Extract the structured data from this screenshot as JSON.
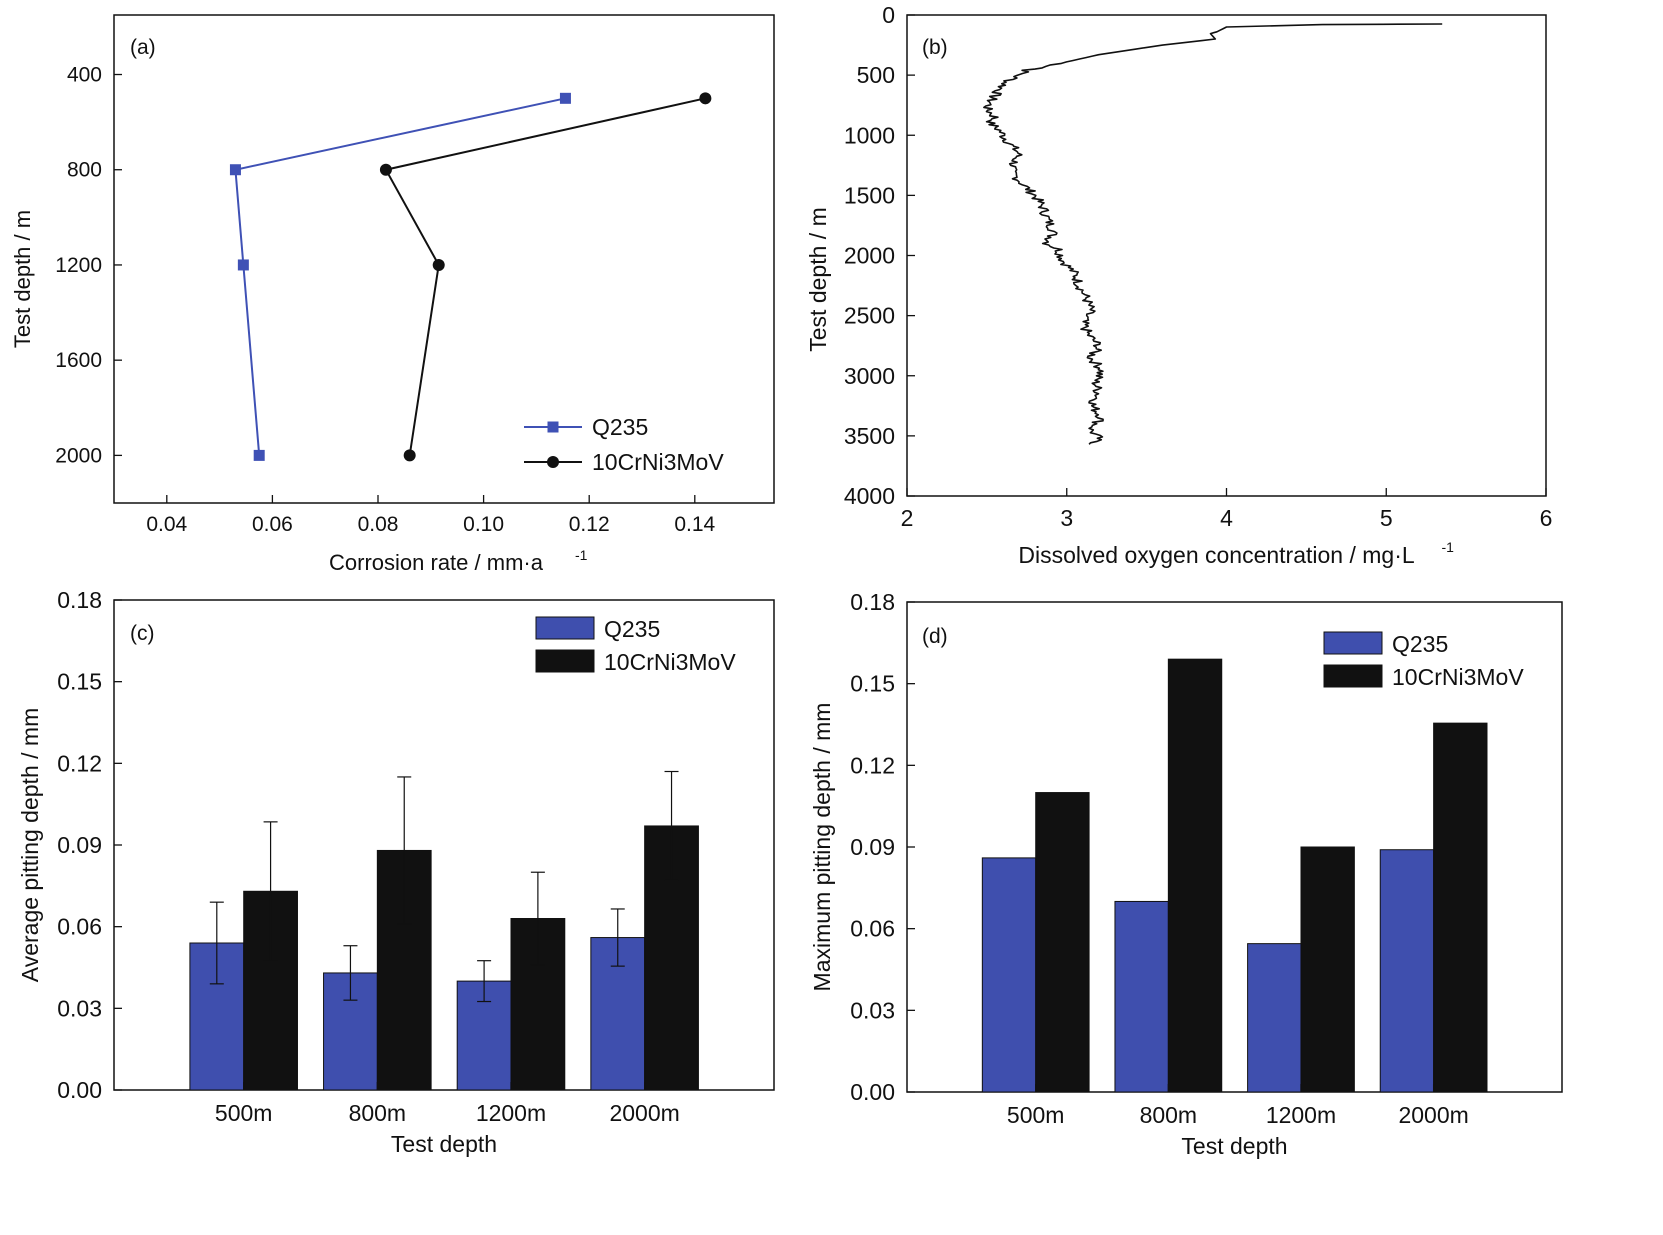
{
  "chart_data": [
    {
      "panel": "(a)",
      "type": "line",
      "xlabel": "Corrosion rate / mm·a",
      "xlabel_sup": "-1",
      "ylabel": "Test depth / m",
      "xlim": [
        0.03,
        0.155
      ],
      "ylim": [
        150,
        2200
      ],
      "y_inverted": true,
      "xticks": [
        0.04,
        0.06,
        0.08,
        0.1,
        0.12,
        0.14
      ],
      "xtick_labels": [
        "0.04",
        "0.06",
        "0.08",
        "0.10",
        "0.12",
        "0.14"
      ],
      "yticks": [
        400,
        800,
        1200,
        1600,
        2000
      ],
      "ytick_labels": [
        "400",
        "800",
        "1200",
        "1600",
        "2000"
      ],
      "legend": "bottom-right",
      "series": [
        {
          "name": "Q235",
          "color": "#3f51b5",
          "marker": "square",
          "points": [
            [
              0.1155,
              500
            ],
            [
              0.053,
              800
            ],
            [
              0.0545,
              1200
            ],
            [
              0.0575,
              2000
            ]
          ]
        },
        {
          "name": "10CrNi3MoV",
          "color": "#111111",
          "marker": "circle",
          "points": [
            [
              0.142,
              500
            ],
            [
              0.0815,
              800
            ],
            [
              0.0915,
              1200
            ],
            [
              0.086,
              2000
            ]
          ]
        }
      ]
    },
    {
      "panel": "(b)",
      "type": "line",
      "xlabel": "Dissolved oxygen concentration / mg·L",
      "xlabel_sup": "-1",
      "ylabel": "Test depth / m",
      "xlim": [
        2,
        6
      ],
      "ylim": [
        0,
        4000
      ],
      "y_inverted": true,
      "xticks": [
        2,
        3,
        4,
        5,
        6
      ],
      "xtick_labels": [
        "2",
        "3",
        "4",
        "5",
        "6"
      ],
      "yticks": [
        0,
        500,
        1000,
        1500,
        2000,
        2500,
        3000,
        3500,
        4000
      ],
      "ytick_labels": [
        "0",
        "500",
        "1000",
        "1500",
        "2000",
        "2500",
        "3000",
        "3500",
        "4000"
      ],
      "series": [
        {
          "color": "#111111",
          "points": [
            [
              5.35,
              75
            ],
            [
              4.6,
              80
            ],
            [
              4.0,
              100
            ],
            [
              3.94,
              140
            ],
            [
              3.9,
              155
            ],
            [
              3.93,
              200
            ],
            [
              3.6,
              250
            ],
            [
              3.2,
              330
            ],
            [
              3.0,
              390
            ],
            [
              2.85,
              440
            ],
            [
              2.75,
              460
            ],
            [
              2.7,
              500
            ],
            [
              2.62,
              560
            ],
            [
              2.58,
              620
            ],
            [
              2.53,
              700
            ],
            [
              2.5,
              780
            ],
            [
              2.55,
              850
            ],
            [
              2.52,
              900
            ],
            [
              2.58,
              960
            ],
            [
              2.6,
              1000
            ],
            [
              2.65,
              1080
            ],
            [
              2.7,
              1150
            ],
            [
              2.68,
              1200
            ],
            [
              2.65,
              1300
            ],
            [
              2.72,
              1400
            ],
            [
              2.8,
              1500
            ],
            [
              2.85,
              1600
            ],
            [
              2.88,
              1700
            ],
            [
              2.92,
              1800
            ],
            [
              2.88,
              1900
            ],
            [
              2.95,
              1950
            ],
            [
              2.98,
              2050
            ],
            [
              3.05,
              2150
            ],
            [
              3.08,
              2250
            ],
            [
              3.12,
              2350
            ],
            [
              3.15,
              2450
            ],
            [
              3.1,
              2550
            ],
            [
              3.13,
              2650
            ],
            [
              3.2,
              2750
            ],
            [
              3.15,
              2850
            ],
            [
              3.22,
              2950
            ],
            [
              3.18,
              3050
            ],
            [
              3.2,
              3150
            ],
            [
              3.16,
              3250
            ],
            [
              3.22,
              3350
            ],
            [
              3.15,
              3450
            ],
            [
              3.2,
              3520
            ],
            [
              3.14,
              3570
            ]
          ]
        }
      ]
    },
    {
      "panel": "(c)",
      "type": "bar",
      "xlabel": "Test depth",
      "ylabel": "Average pitting depth / mm",
      "categories": [
        "500m",
        "800m",
        "1200m",
        "2000m"
      ],
      "ylim": [
        0,
        0.18
      ],
      "yticks": [
        0.0,
        0.03,
        0.06,
        0.09,
        0.12,
        0.15,
        0.18
      ],
      "ytick_labels": [
        "0.00",
        "0.03",
        "0.06",
        "0.09",
        "0.12",
        "0.15",
        "0.18"
      ],
      "legend": "top-right",
      "series": [
        {
          "name": "Q235",
          "color": "#3f4fae",
          "values": [
            0.054,
            0.043,
            0.04,
            0.056
          ],
          "errors": [
            0.015,
            0.01,
            0.0075,
            0.0105
          ]
        },
        {
          "name": "10CrNi3MoV",
          "color": "#111111",
          "values": [
            0.073,
            0.088,
            0.063,
            0.097
          ],
          "errors": [
            0.0255,
            0.027,
            0.017,
            0.02
          ]
        }
      ]
    },
    {
      "panel": "(d)",
      "type": "bar",
      "xlabel": "Test depth",
      "ylabel": "Maximum pitting depth / mm",
      "categories": [
        "500m",
        "800m",
        "1200m",
        "2000m"
      ],
      "ylim": [
        0,
        0.18
      ],
      "yticks": [
        0.0,
        0.03,
        0.06,
        0.09,
        0.12,
        0.15,
        0.18
      ],
      "ytick_labels": [
        "0.00",
        "0.03",
        "0.06",
        "0.09",
        "0.12",
        "0.15",
        "0.18"
      ],
      "legend": "top-right",
      "series": [
        {
          "name": "Q235",
          "color": "#3f4fae",
          "values": [
            0.086,
            0.07,
            0.0545,
            0.089
          ]
        },
        {
          "name": "10CrNi3MoV",
          "color": "#111111",
          "values": [
            0.11,
            0.159,
            0.09,
            0.1355
          ]
        }
      ]
    }
  ]
}
